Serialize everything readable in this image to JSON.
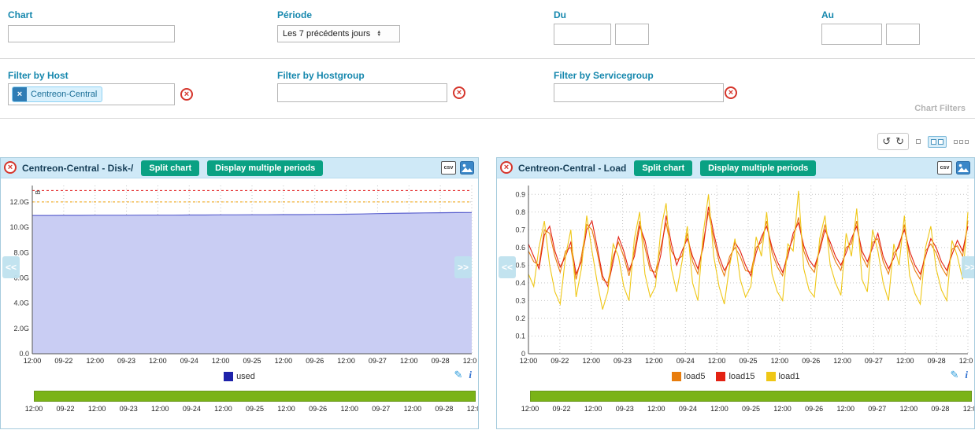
{
  "icons": {
    "clear": "×",
    "chip_remove": "×",
    "panel_close": "×",
    "refresh_auto": "↺",
    "refresh_manual": "↻",
    "pencil": "✎",
    "info": "i",
    "nav_left": "<<",
    "nav_right": ">>"
  },
  "header_filters": {
    "chart_label": "Chart",
    "chart_value": "",
    "periode_label": "Période",
    "periode_value": "Les 7 précédents jours",
    "du_label": "Du",
    "du_date_value": "",
    "du_time_value": "",
    "au_label": "Au",
    "au_date_value": "",
    "au_time_value": ""
  },
  "second_filters": {
    "host_label": "Filter by Host",
    "host_chip": "Centreon-Central",
    "hostgroup_label": "Filter by Hostgroup",
    "hostgroup_value": "",
    "servicegroup_label": "Filter by Servicegroup",
    "servicegroup_value": "",
    "section_label": "Chart Filters"
  },
  "panels": [
    {
      "title": "Centreon-Central - Disk-/",
      "split_button": "Split chart",
      "periods_button": "Display multiple periods",
      "csv_label": "csv",
      "legend": [
        {
          "name": "used",
          "color": "#1e22aa"
        }
      ]
    },
    {
      "title": "Centreon-Central - Load",
      "split_button": "Split chart",
      "periods_button": "Display multiple periods",
      "csv_label": "csv",
      "legend": [
        {
          "name": "load5",
          "color": "#e87d0d"
        },
        {
          "name": "load15",
          "color": "#e32213"
        },
        {
          "name": "load1",
          "color": "#efc716"
        }
      ]
    }
  ],
  "chart_data": [
    {
      "type": "area",
      "title": "Centreon-Central - Disk-/",
      "ylabel": "B",
      "ylim": [
        0,
        13.3
      ],
      "grid": true,
      "yticks": [
        {
          "label": "0.0",
          "value": 0
        },
        {
          "label": "2.0G",
          "value": 2
        },
        {
          "label": "4.0G",
          "value": 4
        },
        {
          "label": "6.0G",
          "value": 6
        },
        {
          "label": "8.0G",
          "value": 8
        },
        {
          "label": "10.0G",
          "value": 10
        },
        {
          "label": "12.0G",
          "value": 12
        }
      ],
      "xticks": [
        "12:00",
        "09-22",
        "12:00",
        "09-23",
        "12:00",
        "09-24",
        "12:00",
        "09-25",
        "12:00",
        "09-26",
        "12:00",
        "09-27",
        "12:00",
        "09-28",
        "12:00"
      ],
      "thresholds": [
        {
          "value": 12.0,
          "color": "#f0a30a"
        },
        {
          "value": 12.9,
          "color": "#e01010"
        }
      ],
      "series": [
        {
          "name": "used",
          "type": "area",
          "color": "#5d63cf",
          "fill": "#c9cdf3",
          "values": [
            10.93,
            10.93,
            10.94,
            10.94,
            10.95,
            10.95,
            10.95,
            10.96,
            10.96,
            10.96,
            10.97,
            10.97,
            10.98,
            10.98,
            10.99,
            10.99,
            11.0,
            11.0,
            11.01,
            11.02,
            11.03,
            11.05,
            11.08,
            11.1,
            11.12,
            11.14,
            11.15,
            11.16,
            11.17
          ]
        }
      ]
    },
    {
      "type": "line",
      "title": "Centreon-Central - Load",
      "ylabel": "",
      "ylim": [
        0,
        0.95
      ],
      "grid": true,
      "yticks": [
        {
          "label": "0",
          "value": 0
        },
        {
          "label": "0.1",
          "value": 0.1
        },
        {
          "label": "0.2",
          "value": 0.2
        },
        {
          "label": "0.3",
          "value": 0.3
        },
        {
          "label": "0.4",
          "value": 0.4
        },
        {
          "label": "0.5",
          "value": 0.5
        },
        {
          "label": "0.6",
          "value": 0.6
        },
        {
          "label": "0.7",
          "value": 0.7
        },
        {
          "label": "0.8",
          "value": 0.8
        },
        {
          "label": "0.9",
          "value": 0.9
        }
      ],
      "xticks": [
        "12:00",
        "09-22",
        "12:00",
        "09-23",
        "12:00",
        "09-24",
        "12:00",
        "09-25",
        "12:00",
        "09-26",
        "12:00",
        "09-27",
        "12:00",
        "09-28",
        "12:00"
      ],
      "thresholds": [],
      "series": [
        {
          "name": "load5",
          "type": "line",
          "color": "#e87d0d",
          "values": [
            0.58,
            0.52,
            0.5,
            0.7,
            0.68,
            0.55,
            0.46,
            0.58,
            0.6,
            0.42,
            0.55,
            0.73,
            0.7,
            0.57,
            0.42,
            0.4,
            0.55,
            0.63,
            0.55,
            0.44,
            0.58,
            0.75,
            0.6,
            0.47,
            0.46,
            0.6,
            0.74,
            0.58,
            0.53,
            0.55,
            0.68,
            0.52,
            0.45,
            0.63,
            0.8,
            0.65,
            0.52,
            0.44,
            0.55,
            0.6,
            0.55,
            0.47,
            0.46,
            0.6,
            0.63,
            0.75,
            0.57,
            0.49,
            0.44,
            0.58,
            0.65,
            0.77,
            0.58,
            0.5,
            0.46,
            0.6,
            0.73,
            0.6,
            0.52,
            0.47,
            0.6,
            0.62,
            0.75,
            0.55,
            0.49,
            0.63,
            0.65,
            0.52,
            0.45,
            0.57,
            0.6,
            0.73,
            0.55,
            0.47,
            0.42,
            0.58,
            0.62,
            0.57,
            0.49,
            0.44,
            0.59,
            0.61,
            0.55,
            0.75
          ]
        },
        {
          "name": "load15",
          "type": "line",
          "color": "#e32213",
          "values": [
            0.62,
            0.55,
            0.48,
            0.67,
            0.72,
            0.58,
            0.49,
            0.55,
            0.63,
            0.45,
            0.52,
            0.7,
            0.75,
            0.6,
            0.44,
            0.38,
            0.52,
            0.66,
            0.58,
            0.47,
            0.55,
            0.72,
            0.64,
            0.5,
            0.43,
            0.56,
            0.78,
            0.62,
            0.5,
            0.58,
            0.65,
            0.55,
            0.48,
            0.6,
            0.83,
            0.68,
            0.55,
            0.47,
            0.52,
            0.63,
            0.58,
            0.5,
            0.44,
            0.57,
            0.66,
            0.72,
            0.6,
            0.52,
            0.46,
            0.55,
            0.68,
            0.74,
            0.61,
            0.53,
            0.49,
            0.58,
            0.7,
            0.63,
            0.55,
            0.5,
            0.57,
            0.65,
            0.72,
            0.58,
            0.52,
            0.6,
            0.68,
            0.55,
            0.48,
            0.54,
            0.62,
            0.7,
            0.58,
            0.5,
            0.45,
            0.55,
            0.65,
            0.6,
            0.52,
            0.47,
            0.56,
            0.64,
            0.58,
            0.72
          ]
        },
        {
          "name": "load1",
          "type": "line",
          "color": "#efc716",
          "values": [
            0.45,
            0.38,
            0.6,
            0.75,
            0.5,
            0.35,
            0.28,
            0.55,
            0.7,
            0.32,
            0.48,
            0.78,
            0.58,
            0.4,
            0.25,
            0.35,
            0.62,
            0.55,
            0.38,
            0.3,
            0.65,
            0.8,
            0.45,
            0.32,
            0.38,
            0.7,
            0.85,
            0.48,
            0.35,
            0.52,
            0.72,
            0.4,
            0.3,
            0.68,
            0.9,
            0.55,
            0.38,
            0.28,
            0.5,
            0.65,
            0.42,
            0.32,
            0.38,
            0.66,
            0.55,
            0.8,
            0.45,
            0.35,
            0.3,
            0.62,
            0.58,
            0.92,
            0.48,
            0.36,
            0.32,
            0.65,
            0.78,
            0.5,
            0.4,
            0.33,
            0.68,
            0.55,
            0.82,
            0.42,
            0.35,
            0.7,
            0.58,
            0.4,
            0.3,
            0.62,
            0.5,
            0.78,
            0.44,
            0.34,
            0.28,
            0.6,
            0.72,
            0.48,
            0.36,
            0.3,
            0.64,
            0.55,
            0.42,
            0.8
          ]
        }
      ]
    }
  ]
}
